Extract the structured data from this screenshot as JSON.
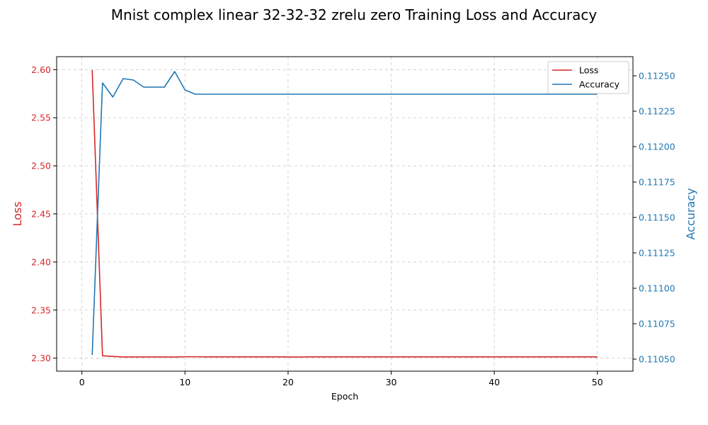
{
  "chart_data": {
    "type": "line",
    "title": "Mnist complex linear 32-32-32 zrelu zero Training Loss and Accuracy",
    "xlabel": "Epoch",
    "ylabel_left": "Loss",
    "ylabel_right": "Accuracy",
    "xlim": [
      -2.45,
      53.45
    ],
    "ylim_left": [
      2.2865,
      2.6135
    ],
    "ylim_right": [
      0.110415,
      0.112635
    ],
    "x_ticks": [
      0,
      10,
      20,
      30,
      40,
      50
    ],
    "y_left_ticks": [
      2.3,
      2.35,
      2.4,
      2.45,
      2.5,
      2.55,
      2.6
    ],
    "y_right_ticks": [
      0.1105,
      0.11075,
      0.111,
      0.11125,
      0.1115,
      0.11175,
      0.112,
      0.11225,
      0.1125
    ],
    "grid": true,
    "legend_position": "top-right",
    "colors": {
      "loss": "#d62728",
      "accuracy": "#1f77b4"
    },
    "x": [
      1,
      2,
      3,
      4,
      5,
      6,
      7,
      8,
      9,
      10,
      11,
      12,
      13,
      14,
      15,
      16,
      17,
      18,
      19,
      20,
      21,
      22,
      23,
      24,
      25,
      26,
      27,
      28,
      29,
      30,
      31,
      32,
      33,
      34,
      35,
      36,
      37,
      38,
      39,
      40,
      41,
      42,
      43,
      44,
      45,
      46,
      47,
      48,
      49,
      50
    ],
    "series": [
      {
        "name": "Loss",
        "axis": "left",
        "values": [
          2.5995,
          2.3025,
          2.3018,
          2.3013,
          2.3013,
          2.3013,
          2.3013,
          2.3013,
          2.3012,
          2.3015,
          2.3015,
          2.3014,
          2.3014,
          2.3014,
          2.3014,
          2.3014,
          2.3014,
          2.3014,
          2.3014,
          2.3013,
          2.3012,
          2.3014,
          2.3014,
          2.3014,
          2.3014,
          2.3014,
          2.3014,
          2.3014,
          2.3014,
          2.3014,
          2.3014,
          2.3014,
          2.3014,
          2.3014,
          2.3014,
          2.3014,
          2.3014,
          2.3014,
          2.3014,
          2.3014,
          2.3014,
          2.3014,
          2.3014,
          2.3014,
          2.3014,
          2.3014,
          2.3014,
          2.3014,
          2.3014,
          2.3013
        ]
      },
      {
        "name": "Accuracy",
        "axis": "right",
        "values": [
          0.11053,
          0.11245,
          0.11235,
          0.11248,
          0.11247,
          0.11242,
          0.11242,
          0.11242,
          0.11253,
          0.1124,
          0.11237,
          0.11237,
          0.11237,
          0.11237,
          0.11237,
          0.11237,
          0.11237,
          0.11237,
          0.11237,
          0.11237,
          0.11237,
          0.11237,
          0.11237,
          0.11237,
          0.11237,
          0.11237,
          0.11237,
          0.11237,
          0.11237,
          0.11237,
          0.11237,
          0.11237,
          0.11237,
          0.11237,
          0.11237,
          0.11237,
          0.11237,
          0.11237,
          0.11237,
          0.11237,
          0.11237,
          0.11237,
          0.11237,
          0.11237,
          0.11237,
          0.11237,
          0.11237,
          0.11237,
          0.11237,
          0.11237
        ]
      }
    ]
  }
}
